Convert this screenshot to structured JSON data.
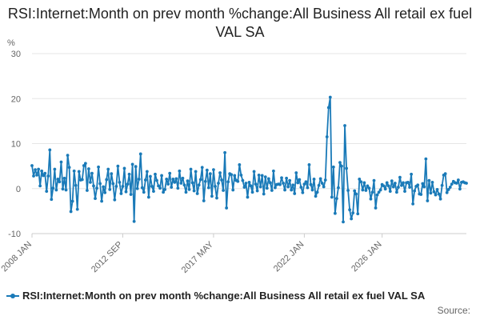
{
  "chart_data": {
    "type": "line",
    "title": "RSI:Internet:Month on prev month %change:All Business All retail ex fuel VAL SA",
    "ylabel": "%",
    "ylim": [
      -10,
      30
    ],
    "yticks": [
      -10,
      0,
      10,
      20,
      30
    ],
    "x_start": "2008 JAN",
    "xticks": [
      "2008 JAN",
      "2012 SEP",
      "2017 MAY",
      "2022 JAN",
      "2026 JAN"
    ],
    "grid": true,
    "legend_position": "bottom-left",
    "series": [
      {
        "name": "RSI:Internet:Month on prev month %change:All Business All retail ex fuel VAL SA",
        "color": "#1a7ab8",
        "values": [
          5.1,
          2.8,
          4.2,
          3.0,
          4.3,
          0.6,
          3.9,
          2.9,
          3.4,
          -0.6,
          2.8,
          8.6,
          -2.4,
          0.1,
          4.3,
          -0.3,
          2.1,
          1.5,
          5.9,
          -0.1,
          2.3,
          -0.3,
          7.4,
          4.7,
          -5.1,
          -2.8,
          3.9,
          0.7,
          -4.6,
          3.8,
          1.9,
          2.0,
          5.1,
          5.6,
          -0.4,
          4.4,
          1.4,
          3.4,
          0.6,
          -2.2,
          0.1,
          4.8,
          1.1,
          -2.8,
          0.4,
          -0.9,
          2.0,
          4.3,
          -0.2,
          3.3,
          1.1,
          -2.5,
          0.5,
          5.0,
          1.4,
          -1.1,
          0.5,
          4.5,
          -0.7,
          1.0,
          3.2,
          -1.3,
          5.4,
          -7.3,
          4.9,
          0.0,
          2.1,
          7.7,
          0.2,
          -0.8,
          1.9,
          3.8,
          -1.9,
          2.7,
          0.5,
          -0.6,
          3.2,
          1.8,
          0.6,
          0.1,
          2.9,
          -0.8,
          -0.2,
          2.1,
          1.0,
          3.4,
          0.3,
          2.1,
          1.4,
          2.2,
          0.1,
          3.9,
          1.2,
          2.3,
          0.8,
          -0.8,
          1.7,
          -0.2,
          4.3,
          1.3,
          -0.5,
          3.8,
          -1.1,
          0.8,
          2.0,
          4.7,
          -2.7,
          1.6,
          4.1,
          0.2,
          3.3,
          -1.7,
          4.2,
          0.5,
          -2.1,
          1.2,
          3.5,
          1.9,
          -0.4,
          8.0,
          -4.3,
          1.5,
          3.3,
          3.1,
          -0.3,
          2.9,
          1.8,
          1.6,
          5.3,
          3.0,
          1.8,
          0.3,
          1.2,
          -1.9,
          1.4,
          0.6,
          -0.8,
          3.8,
          1.0,
          -0.5,
          3.0,
          0.4,
          2.9,
          -1.2,
          2.6,
          0.1,
          2.2,
          1.3,
          -0.4,
          3.9,
          0.2,
          0.9,
          1.0,
          0.9,
          2.4,
          1.2,
          -0.3,
          2.3,
          0.4,
          1.8,
          -0.3,
          0.8,
          -1.1,
          3.5,
          1.3,
          2.0,
          0.3,
          -0.9,
          1.0,
          1.5,
          0.2,
          5.3,
          0.9,
          -0.3,
          2.1,
          -1.7,
          -0.8,
          0.7,
          2.2,
          1.2,
          0.4,
          1.9,
          11.5,
          18.0,
          20.3,
          -1.9,
          4.8,
          -5.5,
          -2.2,
          0.2,
          5.8,
          5.0,
          -7.4,
          14.0,
          4.5,
          -0.4,
          -4.7,
          -6.7,
          -5.4,
          -0.5,
          -1.2,
          -5.6,
          2.1,
          1.5,
          -0.3,
          1.3,
          -0.4,
          0.6,
          0.1,
          -2.3,
          -0.8,
          1.8,
          -4.3,
          -1.4,
          -0.8,
          -0.3,
          0.9,
          0.6,
          -0.1,
          1.3,
          0.6,
          -0.6,
          1.7,
          0.4,
          1.2,
          -0.8,
          0.3,
          2.5,
          0.7,
          1.3,
          -0.6,
          1.3,
          1.4,
          0.3,
          3.2,
          -3.4,
          -0.5,
          0.5,
          0.8,
          -1.2,
          -1.3,
          1.1,
          0.4,
          6.6,
          -2.7,
          1.8,
          -1.0,
          1.4,
          -0.7,
          -1.4,
          -0.2,
          -1.2,
          -2.3,
          0.7,
          3.0,
          3.3,
          -0.9,
          -0.2,
          0.3,
          1.0,
          1.6,
          1.3,
          1.2,
          1.9,
          -0.1,
          1.4,
          1.5,
          1.3,
          1.2
        ]
      }
    ]
  },
  "source": {
    "label": "Source:"
  }
}
